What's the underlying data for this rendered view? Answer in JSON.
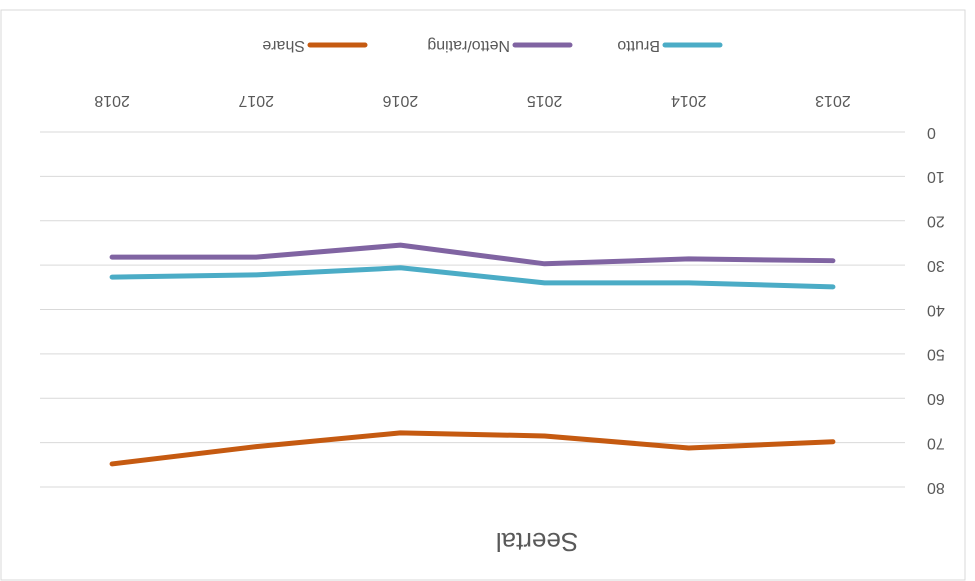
{
  "chart_data": {
    "type": "line",
    "title": "Seertal",
    "categories": [
      "2013",
      "2014",
      "2015",
      "2016",
      "2017",
      "2018"
    ],
    "series": [
      {
        "name": "Brutto",
        "color": "#4bacc6",
        "values": [
          34.9,
          34,
          34,
          30.6,
          32.2,
          32.7
        ]
      },
      {
        "name": "Netto/rating",
        "color": "#8064a2",
        "values": [
          29,
          28.6,
          29.7,
          25.5,
          28.2,
          28.2
        ]
      },
      {
        "name": "Share",
        "color": "#c55a11",
        "values": [
          69.8,
          71.2,
          68.5,
          67.8,
          70.9,
          74.8
        ]
      }
    ],
    "ylim": [
      0,
      80
    ],
    "yticks": [
      0,
      10,
      20,
      30,
      40,
      50,
      60,
      70,
      80
    ],
    "grid": true,
    "legend": "bottom",
    "rotation": 180
  }
}
